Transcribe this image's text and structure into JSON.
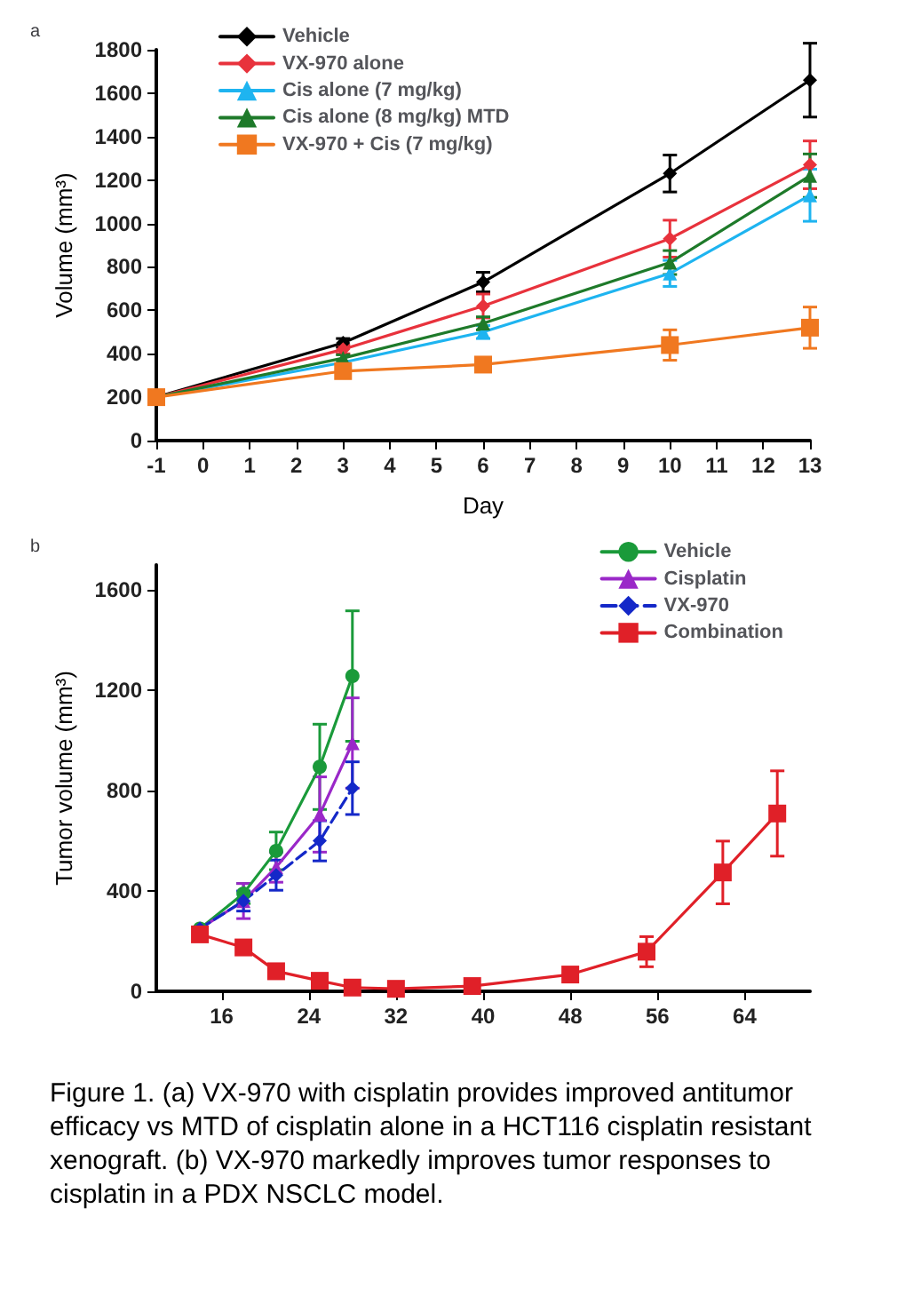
{
  "chart_data": [
    {
      "type": "line",
      "title": "a",
      "xlabel": "Day",
      "ylabel": "Volume (mm³)",
      "x": [
        -1,
        3,
        6,
        10,
        13
      ],
      "xlim": [
        -1,
        13
      ],
      "xticks": [
        -1,
        0,
        1,
        2,
        3,
        4,
        5,
        6,
        7,
        8,
        9,
        10,
        11,
        12,
        13
      ],
      "ylim": [
        0,
        1800
      ],
      "yticks": [
        0,
        200,
        400,
        600,
        800,
        1000,
        1200,
        1400,
        1600,
        1800
      ],
      "grid": false,
      "legend": "top left",
      "line_style": "solid",
      "series": [
        {
          "name": "Vehicle",
          "color": "#000000",
          "marker": "diamond",
          "values": [
            200,
            450,
            730,
            1230,
            1660
          ],
          "errors": [
            null,
            20,
            45,
            85,
            170
          ]
        },
        {
          "name": "VX-970 alone",
          "color": "#e8323c",
          "marker": "diamond",
          "values": [
            200,
            420,
            620,
            930,
            1270
          ],
          "errors": [
            null,
            20,
            55,
            85,
            110
          ]
        },
        {
          "name": "Cis alone (7 mg/kg)",
          "color": "#1eb4f0",
          "marker": "triangle",
          "values": [
            200,
            360,
            500,
            770,
            1130
          ],
          "errors": [
            null,
            null,
            30,
            60,
            120
          ]
        },
        {
          "name": "Cis alone (8 mg/kg) MTD",
          "color": "#1e7a2a",
          "marker": "triangle",
          "values": [
            200,
            380,
            540,
            820,
            1220
          ],
          "errors": [
            null,
            15,
            30,
            55,
            100
          ]
        },
        {
          "name": "VX-970 + Cis (7 mg/kg)",
          "color": "#f07820",
          "marker": "square",
          "values": [
            200,
            320,
            350,
            440,
            520
          ],
          "errors": [
            null,
            20,
            25,
            70,
            95
          ]
        }
      ]
    },
    {
      "type": "line",
      "title": "b",
      "ylabel": "Tumor volume (mm³)",
      "xlim": [
        10,
        70
      ],
      "xticks": [
        16,
        24,
        32,
        40,
        48,
        56,
        64
      ],
      "ylim": [
        0,
        1700
      ],
      "yticks": [
        0,
        400,
        800,
        1200,
        1600
      ],
      "grid": false,
      "legend": "top right",
      "annotations": [
        "Figure 1. (a) VX-970 with cisplatin provides improved antitumor efficacy vs MTD of cisplatin alone  in a HCT116 cisplatin resistant xenograft. (b) VX-970 markedly improves tumor responses to cisplatin in a PDX NSCLC model."
      ],
      "series": [
        {
          "name": "Vehicle",
          "color": "#1a9a3a",
          "marker": "circle",
          "line_style": "solid",
          "x": [
            14,
            18,
            21,
            25,
            28
          ],
          "values": [
            250,
            390,
            560,
            895,
            1257
          ],
          "errors": [
            null,
            40,
            75,
            170,
            260
          ]
        },
        {
          "name": "Cisplatin",
          "color": "#9a28c8",
          "marker": "triangle",
          "line_style": "solid",
          "x": [
            14,
            18,
            21,
            25,
            28
          ],
          "values": [
            250,
            360,
            495,
            705,
            990
          ],
          "errors": [
            null,
            70,
            60,
            150,
            180
          ]
        },
        {
          "name": "VX-970",
          "color": "#1428c8",
          "marker": "diamond",
          "line_style": "dashed",
          "x": [
            14,
            18,
            21,
            25,
            28
          ],
          "values": [
            250,
            360,
            463,
            600,
            810
          ],
          "errors": [
            null,
            40,
            60,
            80,
            105
          ]
        },
        {
          "name": "Combination",
          "color": "#e02028",
          "marker": "square",
          "line_style": "solid",
          "x": [
            14,
            18,
            21,
            25,
            28,
            32,
            39,
            48,
            55,
            62,
            67
          ],
          "values": [
            227,
            175,
            80,
            42,
            15,
            10,
            21,
            67,
            158,
            474,
            709
          ],
          "errors": [
            20,
            20,
            15,
            15,
            10,
            10,
            10,
            20,
            60,
            125,
            170
          ]
        }
      ]
    }
  ]
}
